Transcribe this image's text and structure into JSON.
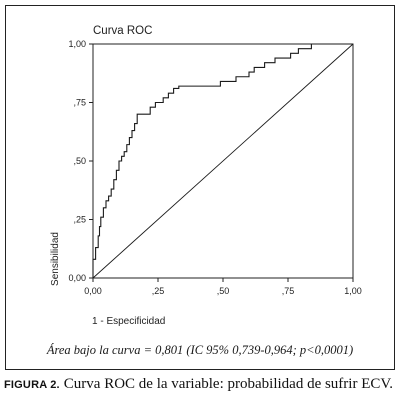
{
  "chart_data": {
    "type": "line",
    "title": "Curva ROC",
    "xlabel": "1 - Especificidad",
    "ylabel": "Sensibilidad",
    "xlim": [
      0,
      1
    ],
    "ylim": [
      0,
      1
    ],
    "x_ticks": [
      "0,00",
      ",25",
      ",50",
      ",75",
      "1,00"
    ],
    "y_ticks": [
      "0,00",
      ",25",
      ",50",
      ",75",
      "1,00"
    ],
    "grid": false,
    "series": [
      {
        "values": [
          [
            0.0,
            0.0
          ],
          [
            0.0,
            0.08
          ],
          [
            0.01,
            0.08
          ],
          [
            0.01,
            0.13
          ],
          [
            0.02,
            0.13
          ],
          [
            0.02,
            0.18
          ],
          [
            0.025,
            0.18
          ],
          [
            0.025,
            0.22
          ],
          [
            0.03,
            0.22
          ],
          [
            0.03,
            0.26
          ],
          [
            0.04,
            0.26
          ],
          [
            0.04,
            0.3
          ],
          [
            0.05,
            0.3
          ],
          [
            0.05,
            0.33
          ],
          [
            0.06,
            0.33
          ],
          [
            0.06,
            0.35
          ],
          [
            0.07,
            0.35
          ],
          [
            0.07,
            0.38
          ],
          [
            0.08,
            0.38
          ],
          [
            0.08,
            0.42
          ],
          [
            0.09,
            0.42
          ],
          [
            0.09,
            0.46
          ],
          [
            0.1,
            0.46
          ],
          [
            0.1,
            0.5
          ],
          [
            0.11,
            0.5
          ],
          [
            0.11,
            0.52
          ],
          [
            0.12,
            0.52
          ],
          [
            0.12,
            0.54
          ],
          [
            0.13,
            0.54
          ],
          [
            0.13,
            0.57
          ],
          [
            0.14,
            0.57
          ],
          [
            0.14,
            0.6
          ],
          [
            0.15,
            0.6
          ],
          [
            0.15,
            0.63
          ],
          [
            0.16,
            0.63
          ],
          [
            0.16,
            0.66
          ],
          [
            0.17,
            0.66
          ],
          [
            0.17,
            0.7
          ],
          [
            0.22,
            0.7
          ],
          [
            0.22,
            0.73
          ],
          [
            0.24,
            0.73
          ],
          [
            0.24,
            0.75
          ],
          [
            0.27,
            0.75
          ],
          [
            0.27,
            0.77
          ],
          [
            0.29,
            0.77
          ],
          [
            0.29,
            0.79
          ],
          [
            0.31,
            0.79
          ],
          [
            0.31,
            0.81
          ],
          [
            0.33,
            0.81
          ],
          [
            0.33,
            0.82
          ],
          [
            0.49,
            0.82
          ],
          [
            0.49,
            0.84
          ],
          [
            0.55,
            0.84
          ],
          [
            0.55,
            0.86
          ],
          [
            0.6,
            0.86
          ],
          [
            0.6,
            0.88
          ],
          [
            0.62,
            0.88
          ],
          [
            0.62,
            0.9
          ],
          [
            0.66,
            0.9
          ],
          [
            0.66,
            0.92
          ],
          [
            0.7,
            0.92
          ],
          [
            0.7,
            0.94
          ],
          [
            0.76,
            0.94
          ],
          [
            0.76,
            0.96
          ],
          [
            0.79,
            0.96
          ],
          [
            0.79,
            0.98
          ],
          [
            0.84,
            0.98
          ],
          [
            0.84,
            1.0
          ],
          [
            1.0,
            1.0
          ]
        ]
      },
      {
        "values": [
          [
            0,
            0
          ],
          [
            1,
            1
          ]
        ]
      }
    ]
  },
  "area_note": "Área bajo la curva = 0,801 (IC 95% 0,739-0,964; p<0,0001)",
  "caption": {
    "label": "FIGURA 2.",
    "text": "Curva ROC de la variable: probabilidad de sufrir ECV."
  }
}
